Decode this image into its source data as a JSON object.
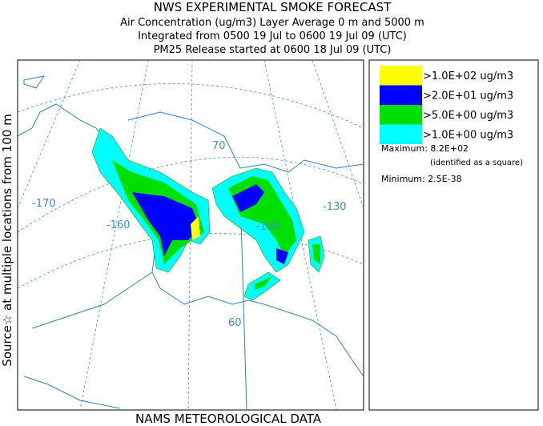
{
  "header": {
    "title": "NWS EXPERIMENTAL SMOKE FORECAST",
    "lines": [
      "Air Concentration (ug/m3) Layer Average    0 m and  5000 m",
      "Integrated from 0500 19 Jul to 0600 19 Jul 09 (UTC)",
      "PM25 Release started at 0600 18 Jul 09 (UTC)"
    ]
  },
  "side_label": "Source☆ at multiple locations from  100 m",
  "footer": "NAMS METEOROLOGICAL DATA",
  "map": {
    "labels": [
      "-170",
      "-160",
      "-140",
      "-130",
      "70",
      "60"
    ]
  },
  "legend": {
    "entries": [
      {
        "label": ">1.0E+02 ug/m3",
        "color": "#ffff00"
      },
      {
        "label": ">2.0E+01 ug/m3",
        "color": "#0000ff"
      },
      {
        "label": ">5.0E+00 ug/m3",
        "color": "#00e000"
      },
      {
        "label": ">1.0E+00 ug/m3",
        "color": "#00ffff"
      }
    ],
    "maximum": "Maximum: 8.2E+02",
    "maximum_note": "(identified as a square)",
    "minimum": "Minimum: 2.5E-38"
  }
}
